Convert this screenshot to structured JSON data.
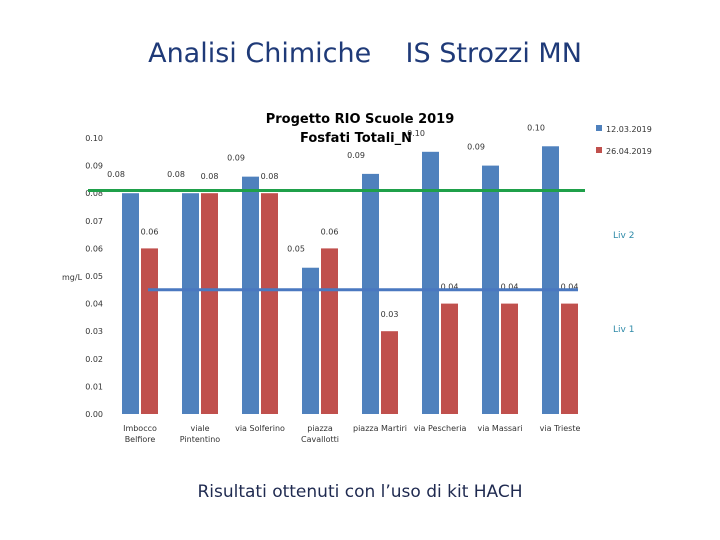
{
  "slide": {
    "title": "Analisi Chimiche    IS Strozzi MN",
    "footer": "Risultati ottenuti con l’uso di kit HACH"
  },
  "chart_data": {
    "type": "bar",
    "title_line1": "Progetto RIO Scuole 2019",
    "title_line2": "Fosfati Totali_N",
    "ylabel": "mg/L",
    "ylim": [
      0,
      0.1
    ],
    "yticks": [
      "0.00",
      "0.01",
      "0.02",
      "0.03",
      "0.04",
      "0.05",
      "0.06",
      "0.07",
      "0.08",
      "0.09",
      "0.10"
    ],
    "categories": [
      [
        "Imbocco",
        "Belfiore"
      ],
      [
        "viale",
        "Pintentino"
      ],
      [
        "via Solferino"
      ],
      [
        "piazza",
        "Cavallotti"
      ],
      [
        "piazza Martiri"
      ],
      [
        "via Pescheria"
      ],
      [
        "via Massari"
      ],
      [
        "via Trieste"
      ]
    ],
    "series": [
      {
        "name": "12.03.2019",
        "color": "#4f81bd",
        "values": [
          0.08,
          0.08,
          0.086,
          0.053,
          0.087,
          0.095,
          0.09,
          0.097
        ],
        "labels": [
          "0.08",
          "0.08",
          "0.09",
          "0.05",
          "0.09",
          "0.10",
          "0.09",
          "0.10"
        ]
      },
      {
        "name": "26.04.2019",
        "color": "#c0504d",
        "values": [
          0.06,
          0.08,
          0.08,
          0.06,
          0.03,
          0.04,
          0.04,
          0.04
        ],
        "labels": [
          "0.06",
          "0.08",
          "0.08",
          "0.06",
          "0.03",
          "0.04",
          "0.04",
          "0.04"
        ]
      }
    ],
    "thresholds": [
      {
        "name": "Liv 2",
        "value": 0.081,
        "color": "#1fa04a"
      },
      {
        "name": "Liv 1",
        "value": 0.045,
        "color": "#4a78c0"
      }
    ]
  }
}
